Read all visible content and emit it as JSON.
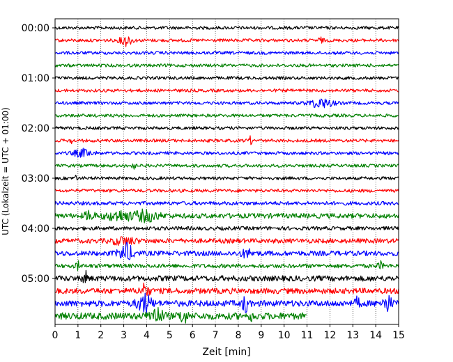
{
  "chart_data": {
    "type": "line",
    "title": "",
    "xlabel": "Zeit  [min]",
    "ylabel": "UTC (Lokalzeit = UTC + 01:00)",
    "xlim": [
      0,
      15
    ],
    "x_ticks": [
      "0",
      "1",
      "2",
      "3",
      "4",
      "5",
      "6",
      "7",
      "8",
      "9",
      "10",
      "11",
      "12",
      "13",
      "14",
      "15"
    ],
    "y_tick_labels": [
      "00:00",
      "01:00",
      "02:00",
      "03:00",
      "04:00",
      "05:00"
    ],
    "grid": "vertical dotted",
    "trace_interval_min": 15,
    "trace_color_cycle": [
      "#000000",
      "#ff0000",
      "#0000ff",
      "#008000"
    ],
    "traces": [
      {
        "start": "00:00",
        "color": "#000000",
        "end_min": 15,
        "amp": 1.0,
        "events": []
      },
      {
        "start": "00:15",
        "color": "#ff0000",
        "end_min": 15,
        "amp": 1.0,
        "events": [
          {
            "t": 3.1,
            "a": 3.0,
            "w": 0.25
          },
          {
            "t": 11.6,
            "a": 1.5,
            "w": 0.1
          }
        ]
      },
      {
        "start": "00:30",
        "color": "#0000ff",
        "end_min": 15,
        "amp": 1.0,
        "events": []
      },
      {
        "start": "00:45",
        "color": "#008000",
        "end_min": 15,
        "amp": 1.0,
        "events": []
      },
      {
        "start": "01:00",
        "color": "#000000",
        "end_min": 15,
        "amp": 1.0,
        "events": []
      },
      {
        "start": "01:15",
        "color": "#ff0000",
        "end_min": 15,
        "amp": 1.0,
        "events": []
      },
      {
        "start": "01:30",
        "color": "#0000ff",
        "end_min": 15,
        "amp": 1.0,
        "events": [
          {
            "t": 11.6,
            "a": 2.5,
            "w": 0.5
          }
        ]
      },
      {
        "start": "01:45",
        "color": "#008000",
        "end_min": 15,
        "amp": 1.0,
        "events": []
      },
      {
        "start": "02:00",
        "color": "#000000",
        "end_min": 15,
        "amp": 1.0,
        "events": []
      },
      {
        "start": "02:15",
        "color": "#ff0000",
        "end_min": 15,
        "amp": 1.0,
        "events": [
          {
            "t": 0.7,
            "a": 2.0,
            "w": 0.05
          },
          {
            "t": 8.5,
            "a": 2.0,
            "w": 0.1
          }
        ]
      },
      {
        "start": "02:30",
        "color": "#0000ff",
        "end_min": 15,
        "amp": 1.0,
        "events": [
          {
            "t": 1.2,
            "a": 2.0,
            "w": 0.4
          }
        ]
      },
      {
        "start": "02:45",
        "color": "#008000",
        "end_min": 15,
        "amp": 1.0,
        "events": [
          {
            "t": 3.4,
            "a": 1.8,
            "w": 0.1
          }
        ]
      },
      {
        "start": "03:00",
        "color": "#000000",
        "end_min": 15,
        "amp": 1.0,
        "events": [
          {
            "t": 0.9,
            "a": 2.0,
            "w": 0.05
          }
        ]
      },
      {
        "start": "03:15",
        "color": "#ff0000",
        "end_min": 15,
        "amp": 1.0,
        "events": []
      },
      {
        "start": "03:30",
        "color": "#0000ff",
        "end_min": 15,
        "amp": 1.2,
        "events": []
      },
      {
        "start": "03:45",
        "color": "#008000",
        "end_min": 15,
        "amp": 1.6,
        "events": [
          {
            "t": 1.5,
            "a": 2.5,
            "w": 0.2
          },
          {
            "t": 2.8,
            "a": 2.5,
            "w": 0.6
          },
          {
            "t": 4.0,
            "a": 2.8,
            "w": 0.5
          }
        ]
      },
      {
        "start": "04:00",
        "color": "#000000",
        "end_min": 15,
        "amp": 1.2,
        "events": []
      },
      {
        "start": "04:15",
        "color": "#ff0000",
        "end_min": 15,
        "amp": 1.5,
        "events": [
          {
            "t": 3.0,
            "a": 2.0,
            "w": 0.5
          }
        ]
      },
      {
        "start": "04:30",
        "color": "#0000ff",
        "end_min": 15,
        "amp": 1.6,
        "events": [
          {
            "t": 3.1,
            "a": 5.0,
            "w": 0.3
          },
          {
            "t": 8.4,
            "a": 1.8,
            "w": 0.3
          }
        ]
      },
      {
        "start": "04:45",
        "color": "#008000",
        "end_min": 15,
        "amp": 1.3,
        "events": [
          {
            "t": 1.0,
            "a": 2.0,
            "w": 0.1
          },
          {
            "t": 14.2,
            "a": 2.0,
            "w": 0.1
          }
        ]
      },
      {
        "start": "05:00",
        "color": "#000000",
        "end_min": 15,
        "amp": 1.8,
        "events": [
          {
            "t": 1.3,
            "a": 4.0,
            "w": 0.1
          }
        ]
      },
      {
        "start": "05:15",
        "color": "#ff0000",
        "end_min": 15,
        "amp": 1.8,
        "events": [
          {
            "t": 3.9,
            "a": 3.5,
            "w": 0.2
          }
        ]
      },
      {
        "start": "05:30",
        "color": "#0000ff",
        "end_min": 15,
        "amp": 2.0,
        "events": [
          {
            "t": 3.9,
            "a": 5.0,
            "w": 0.3
          },
          {
            "t": 8.3,
            "a": 6.0,
            "w": 0.1
          },
          {
            "t": 13.2,
            "a": 3.0,
            "w": 0.1
          },
          {
            "t": 14.5,
            "a": 4.0,
            "w": 0.2
          }
        ]
      },
      {
        "start": "05:45",
        "color": "#008000",
        "end_min": 11.0,
        "amp": 2.2,
        "events": [
          {
            "t": 4.4,
            "a": 4.0,
            "w": 0.3
          },
          {
            "t": 5.6,
            "a": 4.0,
            "w": 0.15
          },
          {
            "t": 8.6,
            "a": 2.0,
            "w": 0.1
          }
        ]
      }
    ]
  }
}
